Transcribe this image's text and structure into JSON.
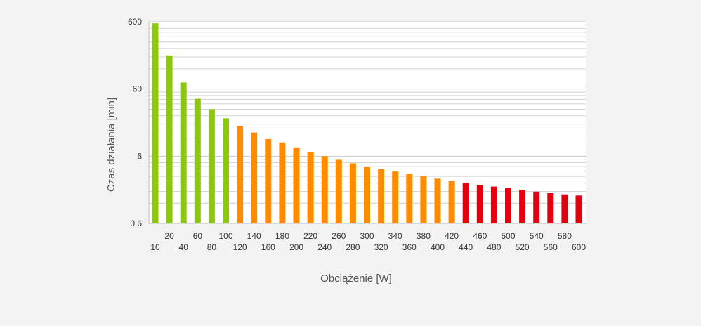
{
  "chart_data": {
    "type": "bar",
    "title": "",
    "xlabel": "Obciążenie [W]",
    "ylabel": "Czas działania [min]",
    "yscale": "log",
    "ylim": [
      0.6,
      600
    ],
    "ytick_labels": [
      "600",
      "60",
      "6",
      "0.6"
    ],
    "ytick_values": [
      600,
      60,
      6,
      0.6
    ],
    "grid": true,
    "legend": "none",
    "categories": [
      "10",
      "20",
      "40",
      "60",
      "80",
      "100",
      "120",
      "140",
      "160",
      "180",
      "200",
      "220",
      "240",
      "260",
      "280",
      "300",
      "320",
      "340",
      "360",
      "380",
      "400",
      "420",
      "440",
      "460",
      "480",
      "500",
      "520",
      "540",
      "560",
      "580",
      "600"
    ],
    "values": [
      570,
      190,
      75,
      43,
      30,
      22,
      17,
      13.5,
      10.8,
      9.6,
      8.1,
      7.0,
      6.0,
      5.3,
      4.7,
      4.2,
      3.85,
      3.55,
      3.25,
      3.0,
      2.78,
      2.6,
      2.4,
      2.25,
      2.12,
      2.0,
      1.88,
      1.78,
      1.7,
      1.62,
      1.56
    ],
    "bar_colors": [
      "#8dc710",
      "#8dc710",
      "#8dc710",
      "#8dc710",
      "#8dc710",
      "#8dc710",
      "#ff8c00",
      "#ff8c00",
      "#ff8c00",
      "#ff8c00",
      "#ff8c00",
      "#ff8c00",
      "#ff8c00",
      "#ff8c00",
      "#ff8c00",
      "#ff8c00",
      "#ff8c00",
      "#ff8c00",
      "#ff8c00",
      "#ff8c00",
      "#ff8c00",
      "#ff8c00",
      "#e3000f",
      "#e3000f",
      "#e3000f",
      "#e3000f",
      "#e3000f",
      "#e3000f",
      "#e3000f",
      "#e3000f",
      "#e3000f"
    ],
    "colors": {
      "background": "#f3f3f3",
      "plot_background": "#ffffff",
      "grid": "#c8c8c8",
      "green": "#8dc710",
      "orange": "#ff8c00",
      "red": "#e3000f"
    }
  }
}
